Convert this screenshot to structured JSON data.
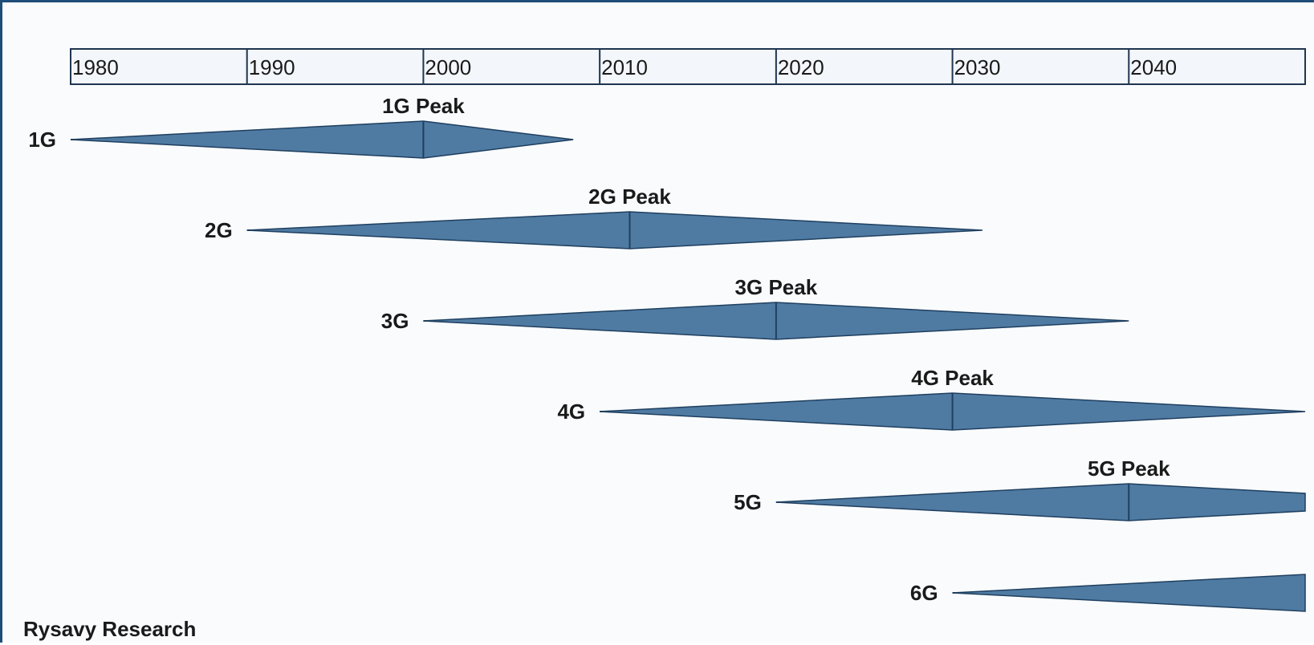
{
  "chart_data": {
    "type": "timeline",
    "title": "",
    "source": "Rysavy Research",
    "x_ticks": [
      "1980",
      "1990",
      "2000",
      "2010",
      "2020",
      "2030",
      "2040"
    ],
    "x_range": [
      1980,
      2050
    ],
    "colors": {
      "fill": "#4f7ba3",
      "stroke": "#1f3f5f",
      "axis_border": "#1f4e79"
    },
    "series": [
      {
        "name": "1G",
        "start": 1980,
        "peak": 2000,
        "end": 2008.5,
        "peak_label": "1G Peak"
      },
      {
        "name": "2G",
        "start": 1990,
        "peak": 2011.7,
        "end": 2031.7,
        "peak_label": "2G Peak"
      },
      {
        "name": "3G",
        "start": 2000,
        "peak": 2020,
        "end": 2040,
        "peak_label": "3G Peak"
      },
      {
        "name": "4G",
        "start": 2010,
        "peak": 2030,
        "end": 2050,
        "peak_label": "4G Peak"
      },
      {
        "name": "5G",
        "start": 2020,
        "peak": 2040,
        "end": 2050,
        "peak_label": "5G Peak"
      },
      {
        "name": "6G",
        "start": 2030,
        "peak": null,
        "end": 2050,
        "peak_label": ""
      }
    ]
  }
}
